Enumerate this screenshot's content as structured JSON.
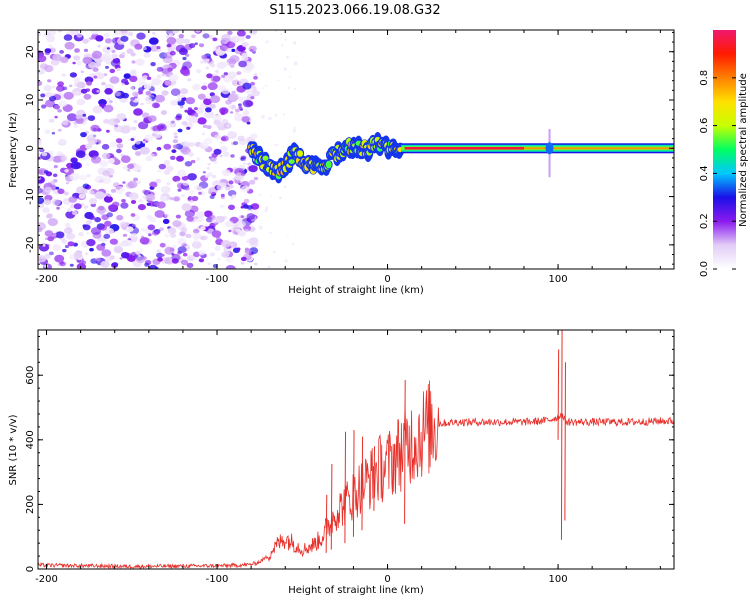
{
  "title": "S115.2023.066.19.08.G32",
  "chart_data": [
    {
      "type": "heatmap",
      "xlabel": "Height of straight line (km)",
      "ylabel": "Frequency (Hz)",
      "xlim": [
        -205,
        168
      ],
      "ylim": [
        -25,
        24.5
      ],
      "x_ticks": [
        -200,
        -100,
        0,
        100
      ],
      "x_tick_labels": [
        "-200",
        "-100",
        "0",
        "100"
      ],
      "y_ticks": [
        -20,
        -10,
        0,
        10,
        20
      ],
      "y_tick_labels": [
        "-20",
        "-10",
        "0",
        "10",
        "20"
      ],
      "noise_region_x": [
        -205,
        -77
      ],
      "signal_track": [
        {
          "x": -80,
          "f": 0.0
        },
        {
          "x": -75,
          "f": -2.0
        },
        {
          "x": -70,
          "f": -3.5
        },
        {
          "x": -65,
          "f": -5.0
        },
        {
          "x": -60,
          "f": -4.0
        },
        {
          "x": -55,
          "f": -1.0
        },
        {
          "x": -50,
          "f": -2.5
        },
        {
          "x": -45,
          "f": -4.0
        },
        {
          "x": -40,
          "f": -4.5
        },
        {
          "x": -35,
          "f": -3.0
        },
        {
          "x": -30,
          "f": -1.0
        },
        {
          "x": -25,
          "f": 0.0
        },
        {
          "x": -20,
          "f": 0.5
        },
        {
          "x": -15,
          "f": 0.0
        },
        {
          "x": -10,
          "f": 0.0
        },
        {
          "x": -5,
          "f": 1.0
        },
        {
          "x": 0,
          "f": 0.5
        },
        {
          "x": 10,
          "f": 0.0
        },
        {
          "x": 50,
          "f": 0.0
        },
        {
          "x": 90,
          "f": 0.0
        },
        {
          "x": 95,
          "f": 0.0
        },
        {
          "x": 168,
          "f": 0.0
        }
      ],
      "colorbar": {
        "label": "Normalized spectral amplitude",
        "range": [
          0,
          1
        ],
        "ticks": [
          0.0,
          0.2,
          0.4,
          0.6,
          0.8
        ],
        "tick_labels": [
          "0.0",
          "0.2",
          "0.4",
          "0.6",
          "0.8"
        ],
        "colors": [
          "#ffffff",
          "#e2ccf7",
          "#8a1aef",
          "#1a10e8",
          "#00c8ff",
          "#00ff60",
          "#c8ff00",
          "#ffe000",
          "#ff8000",
          "#ff1a00",
          "#f0186e"
        ]
      }
    },
    {
      "type": "line",
      "xlabel": "Height of straight line (km)",
      "ylabel": "SNR (10 * v/v)",
      "xlim": [
        -205,
        168
      ],
      "ylim": [
        0,
        740
      ],
      "x_ticks": [
        -200,
        -100,
        0,
        100
      ],
      "x_tick_labels": [
        "-200",
        "-100",
        "0",
        "100"
      ],
      "y_ticks": [
        0,
        200,
        400,
        600
      ],
      "y_tick_labels": [
        "0",
        "200",
        "400",
        "600"
      ],
      "line_color": "#e8302a",
      "series": [
        {
          "x": [
            -205,
            -180,
            -150,
            -120,
            -100,
            -90,
            -80,
            -75,
            -70,
            -65,
            -60,
            -55,
            -50,
            -45,
            -40,
            -35,
            -30,
            -25,
            -20,
            -15,
            -10,
            -5,
            0,
            5,
            10,
            15,
            20,
            25,
            30,
            40,
            50,
            60,
            70,
            80,
            90,
            95,
            100,
            102,
            104,
            106,
            110,
            120,
            130,
            140,
            150,
            160,
            168
          ],
          "values": [
            12,
            10,
            8,
            9,
            10,
            11,
            14,
            22,
            40,
            75,
            95,
            80,
            60,
            70,
            90,
            130,
            180,
            200,
            230,
            260,
            280,
            310,
            320,
            350,
            380,
            400,
            420,
            440,
            450,
            455,
            455,
            455,
            455,
            455,
            458,
            462,
            470,
            480,
            460,
            455,
            455,
            455,
            455,
            455,
            456,
            458,
            458
          ]
        }
      ],
      "spikes": [
        {
          "x": -36,
          "min": 50,
          "max": 230
        },
        {
          "x": -33,
          "min": 60,
          "max": 325
        },
        {
          "x": -25,
          "min": 80,
          "max": 425
        },
        {
          "x": -20,
          "min": 100,
          "max": 430
        },
        {
          "x": -15,
          "min": 120,
          "max": 410
        },
        {
          "x": -8,
          "min": 180,
          "max": 380
        },
        {
          "x": 10,
          "min": 140,
          "max": 585
        },
        {
          "x": 100,
          "min": 400,
          "max": 680
        },
        {
          "x": 102,
          "min": 90,
          "max": 740
        },
        {
          "x": 104,
          "min": 150,
          "max": 640
        }
      ]
    }
  ]
}
